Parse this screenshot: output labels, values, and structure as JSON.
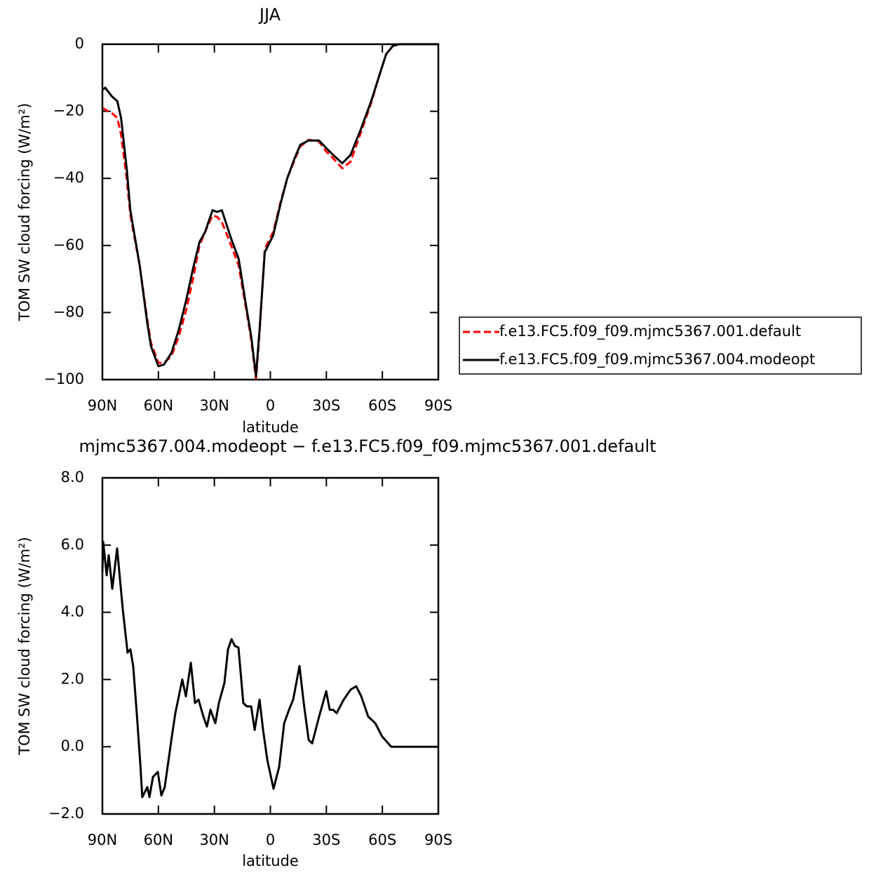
{
  "chart_data": [
    {
      "type": "line",
      "title": "JJA",
      "x_label": "latitude",
      "y_label": "TOM SW cloud forcing (W/m²)",
      "x": [
        90,
        88.5,
        85,
        82,
        80,
        77,
        75,
        70,
        66,
        64,
        60,
        57,
        53,
        49,
        45,
        41.5,
        38,
        35,
        31,
        28.5,
        26,
        21,
        17,
        13.3,
        10.3,
        7.7,
        5.8,
        3,
        -1.5,
        -5.5,
        -9,
        -13,
        -16,
        -20.5,
        -26,
        -30,
        -33.6,
        -38.5,
        -43,
        -48.7,
        -54,
        -58,
        -62,
        -65.6,
        -69,
        -90
      ],
      "series": [
        {
          "name": "f.e13.FC5.f09_f09.mjmc5367.001.default",
          "color": "#ff0000",
          "dashed": true,
          "values": [
            -19,
            -19.5,
            -20.5,
            -22,
            -27,
            -40,
            -51,
            -66,
            -82,
            -89,
            -95,
            -95,
            -93,
            -87,
            -79,
            -70,
            -60,
            -56,
            -51,
            -51.5,
            -53,
            -60,
            -66,
            -78,
            -88,
            -100,
            -86,
            -61,
            -56,
            -47,
            -40,
            -34.5,
            -30.5,
            -28.5,
            -29,
            -32,
            -34,
            -37,
            -35,
            -26,
            -17.5,
            -10,
            -3,
            -0.5,
            0,
            0
          ]
        },
        {
          "name": "f.e13.FC5.f09_f09.mjmc5367.004.modeopt",
          "color": "#000000",
          "dashed": false,
          "values": [
            -13.6,
            -13,
            -15.5,
            -17,
            -22,
            -37,
            -49.6,
            -66,
            -83,
            -90,
            -96,
            -95.5,
            -92,
            -85,
            -76,
            -67,
            -59,
            -56,
            -49.5,
            -50,
            -49.5,
            -58,
            -64,
            -77,
            -87,
            -99,
            -85,
            -62,
            -57,
            -47.5,
            -40,
            -34,
            -30,
            -28.7,
            -28.7,
            -31,
            -33,
            -35.5,
            -33,
            -25,
            -17,
            -10,
            -3,
            -0.5,
            0,
            0
          ]
        }
      ],
      "xlim": [
        90,
        -90
      ],
      "xticks": [
        {
          "value": 90,
          "label": "90N"
        },
        {
          "value": 60,
          "label": "60N"
        },
        {
          "value": 30,
          "label": "30N"
        },
        0,
        {
          "value": -30,
          "label": "30S"
        },
        {
          "value": -60,
          "label": "60S"
        },
        {
          "value": -90,
          "label": "90S"
        }
      ],
      "ylim": [
        -100,
        0
      ],
      "yticks": [
        {
          "value": -100,
          "label": "−100"
        },
        {
          "value": -80,
          "label": "−80"
        },
        {
          "value": -60,
          "label": "−60"
        },
        {
          "value": -40,
          "label": "−40"
        },
        {
          "value": -20,
          "label": "−20"
        },
        0
      ],
      "legend": "right"
    },
    {
      "type": "line",
      "title": "mjmc5367.004.modeopt − f.e13.FC5.f09_f09.mjmc5367.001.default",
      "x_label": "latitude",
      "y_label": "TOM SW cloud forcing (W/m²)",
      "x": [
        90,
        89.6,
        87.7,
        86.6,
        84.7,
        82.1,
        79.1,
        76.5,
        75.0,
        73.5,
        71.6,
        69.7,
        68.6,
        65.9,
        64.8,
        62.9,
        60.3,
        58.4,
        56.6,
        52.8,
        50.9,
        47.2,
        45.3,
        42.6,
        40.4,
        38.5,
        35.9,
        34.0,
        32.1,
        29.5,
        27.6,
        24.6,
        22.7,
        20.8,
        19.0,
        17.1,
        14.5,
        12.6,
        10.3,
        8.4,
        5.8,
        3.9,
        1.6,
        -1.7,
        -4.7,
        -7.4,
        -10.0,
        -12.2,
        -15.6,
        -17.9,
        -20.5,
        -22.4,
        -26.1,
        -29.9,
        -31.8,
        -33.6,
        -35.5,
        -39.3,
        -43.0,
        -46.0,
        -48.7,
        -52.4,
        -56.2,
        -59.9,
        -64.8,
        -90
      ],
      "series": [
        {
          "color": "#000000",
          "dashed": false,
          "values": [
            5.2,
            6.1,
            5.1,
            5.7,
            4.7,
            5.9,
            4.1,
            2.8,
            2.9,
            2.4,
            1.0,
            -0.5,
            -1.5,
            -1.2,
            -1.5,
            -0.9,
            -0.75,
            -1.45,
            -1.2,
            0.3,
            1.0,
            2.0,
            1.5,
            2.5,
            1.3,
            1.4,
            0.9,
            0.6,
            1.1,
            0.7,
            1.3,
            1.9,
            2.9,
            3.2,
            3.0,
            2.95,
            1.3,
            1.2,
            1.2,
            0.5,
            1.4,
            0.5,
            -0.4,
            -1.25,
            -0.6,
            0.7,
            1.1,
            1.4,
            2.4,
            1.3,
            0.2,
            0.1,
            0.9,
            1.65,
            1.1,
            1.1,
            1.0,
            1.4,
            1.7,
            1.8,
            1.5,
            0.9,
            0.7,
            0.3,
            0,
            0
          ]
        }
      ],
      "xlim": [
        90,
        -90
      ],
      "xticks": [
        {
          "value": 90,
          "label": "90N"
        },
        {
          "value": 60,
          "label": "60N"
        },
        {
          "value": 30,
          "label": "30N"
        },
        0,
        {
          "value": -30,
          "label": "30S"
        },
        {
          "value": -60,
          "label": "60S"
        },
        {
          "value": -90,
          "label": "90S"
        }
      ],
      "ylim": [
        -2,
        8
      ],
      "yticks": [
        {
          "value": -2,
          "label": "−2.0"
        },
        {
          "value": 0,
          "label": "0.0"
        },
        {
          "value": 2,
          "label": "2.0"
        },
        {
          "value": 4,
          "label": "4.0"
        },
        {
          "value": 6,
          "label": "6.0"
        },
        {
          "value": 8,
          "label": "8.0"
        }
      ]
    }
  ]
}
